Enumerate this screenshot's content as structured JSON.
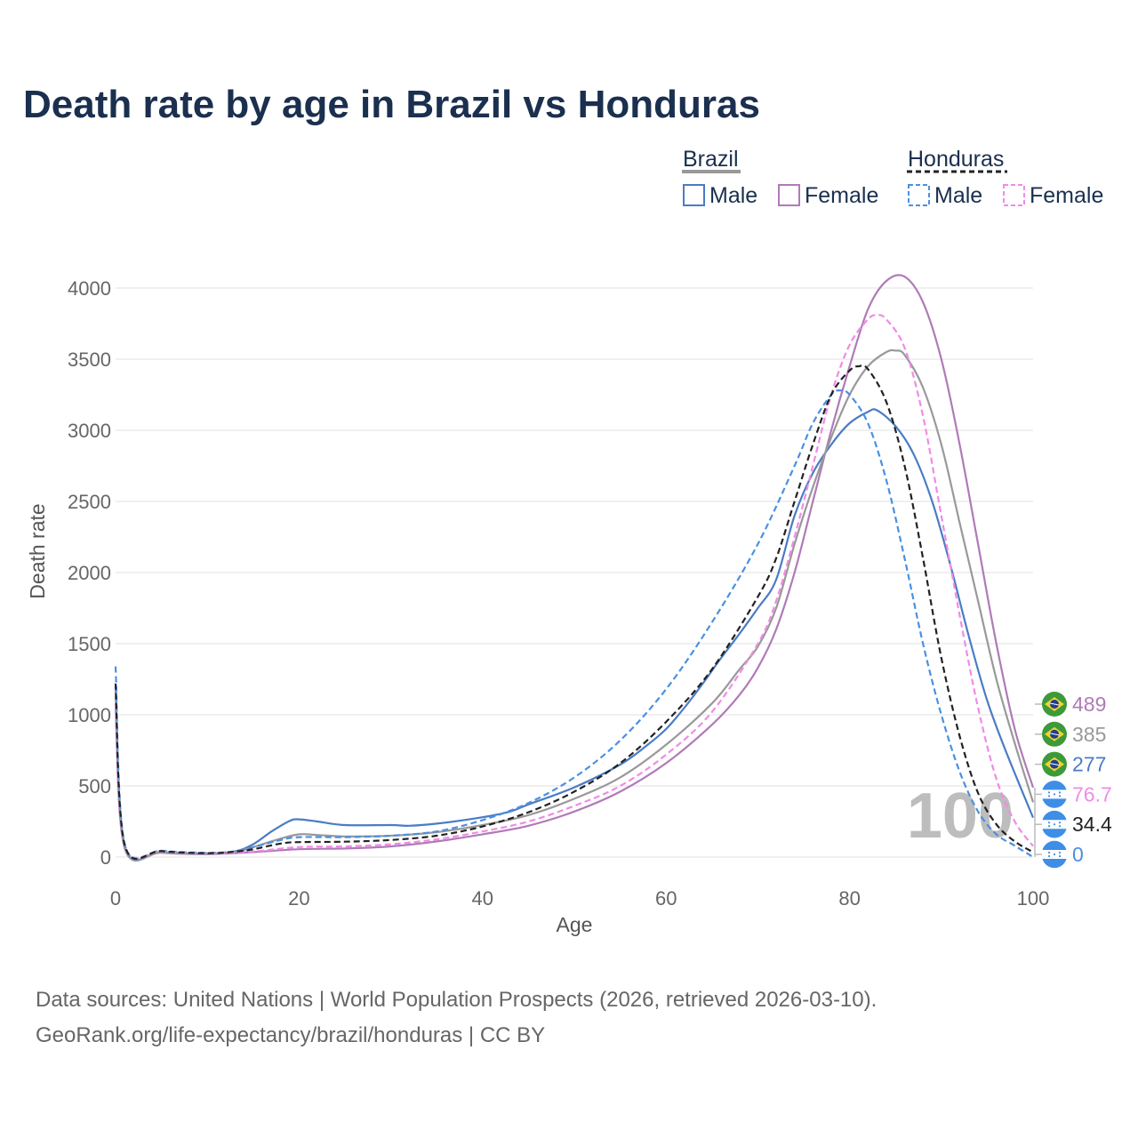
{
  "title": "Death rate by age in Brazil vs Honduras",
  "legend": {
    "groups": [
      {
        "name": "Brazil",
        "swatch_color": "#999999",
        "swatch_style": "solid"
      },
      {
        "name": "Honduras",
        "swatch_color": "#222222",
        "swatch_style": "dashed"
      }
    ],
    "items": [
      {
        "label": "Male",
        "color": "#4a7cc4",
        "style": "solid"
      },
      {
        "label": "Female",
        "color": "#b07ab8",
        "style": "solid"
      },
      {
        "label": "Male",
        "color": "#4a90e2",
        "style": "dashed"
      },
      {
        "label": "Female",
        "color": "#f08be6",
        "style": "dashed"
      }
    ]
  },
  "watermark": "100",
  "source_lines": [
    "Data sources: United Nations | World Population Prospects (2026, retrieved 2026-03-10).",
    "GeoRank.org/life-expectancy/brazil/honduras | CC BY"
  ],
  "chart_data": {
    "type": "line",
    "title": "Death rate by age in Brazil vs Honduras",
    "xlabel": "Age",
    "ylabel": "Death rate",
    "xlim": [
      0,
      100
    ],
    "ylim": [
      0,
      4000
    ],
    "xticks": [
      0,
      20,
      40,
      60,
      80,
      100
    ],
    "yticks": [
      0,
      500,
      1000,
      1500,
      2000,
      2500,
      3000,
      3500,
      4000
    ],
    "grid": true,
    "legend_position": "top-right",
    "series": [
      {
        "name": "Brazil Male",
        "country": "Brazil",
        "sex": "Male",
        "color": "#4a7cc4",
        "dash": "solid",
        "end_label": "277",
        "flag": "brazil",
        "points": [
          [
            0,
            1200
          ],
          [
            1,
            70
          ],
          [
            5,
            35
          ],
          [
            10,
            25
          ],
          [
            13,
            40
          ],
          [
            15,
            90
          ],
          [
            17,
            180
          ],
          [
            19,
            255
          ],
          [
            20,
            265
          ],
          [
            22,
            250
          ],
          [
            25,
            225
          ],
          [
            30,
            225
          ],
          [
            32,
            220
          ],
          [
            35,
            235
          ],
          [
            40,
            280
          ],
          [
            43,
            320
          ],
          [
            45,
            370
          ],
          [
            50,
            490
          ],
          [
            55,
            650
          ],
          [
            58,
            790
          ],
          [
            60,
            900
          ],
          [
            62,
            1050
          ],
          [
            64,
            1220
          ],
          [
            66,
            1400
          ],
          [
            68,
            1570
          ],
          [
            70,
            1750
          ],
          [
            72,
            1950
          ],
          [
            74,
            2400
          ],
          [
            76,
            2700
          ],
          [
            78,
            2900
          ],
          [
            80,
            3050
          ],
          [
            82,
            3130
          ],
          [
            83,
            3140
          ],
          [
            85,
            3030
          ],
          [
            87,
            2830
          ],
          [
            89,
            2500
          ],
          [
            91,
            2050
          ],
          [
            93,
            1550
          ],
          [
            95,
            1100
          ],
          [
            97,
            750
          ],
          [
            100,
            277
          ]
        ]
      },
      {
        "name": "Brazil Female",
        "country": "Brazil",
        "sex": "Female",
        "color": "#b07ab8",
        "dash": "solid",
        "end_label": "489",
        "flag": "brazil",
        "points": [
          [
            0,
            1050
          ],
          [
            1,
            60
          ],
          [
            5,
            30
          ],
          [
            10,
            20
          ],
          [
            15,
            35
          ],
          [
            20,
            55
          ],
          [
            25,
            60
          ],
          [
            30,
            75
          ],
          [
            35,
            110
          ],
          [
            40,
            160
          ],
          [
            45,
            220
          ],
          [
            50,
            320
          ],
          [
            55,
            460
          ],
          [
            60,
            660
          ],
          [
            65,
            930
          ],
          [
            68,
            1140
          ],
          [
            70,
            1330
          ],
          [
            72,
            1600
          ],
          [
            74,
            2000
          ],
          [
            76,
            2500
          ],
          [
            78,
            3000
          ],
          [
            80,
            3450
          ],
          [
            82,
            3850
          ],
          [
            84,
            4050
          ],
          [
            86,
            4080
          ],
          [
            88,
            3900
          ],
          [
            90,
            3500
          ],
          [
            92,
            2900
          ],
          [
            94,
            2200
          ],
          [
            96,
            1500
          ],
          [
            98,
            900
          ],
          [
            100,
            489
          ]
        ]
      },
      {
        "name": "Brazil Total",
        "country": "Brazil",
        "sex": "Total",
        "color": "#999999",
        "dash": "solid",
        "end_label": "385",
        "flag": "brazil",
        "points": [
          [
            0,
            1130
          ],
          [
            1,
            65
          ],
          [
            5,
            32
          ],
          [
            10,
            22
          ],
          [
            13,
            35
          ],
          [
            15,
            70
          ],
          [
            18,
            130
          ],
          [
            20,
            160
          ],
          [
            22,
            155
          ],
          [
            25,
            145
          ],
          [
            30,
            150
          ],
          [
            35,
            175
          ],
          [
            40,
            225
          ],
          [
            45,
            295
          ],
          [
            50,
            410
          ],
          [
            55,
            560
          ],
          [
            60,
            790
          ],
          [
            65,
            1080
          ],
          [
            68,
            1320
          ],
          [
            70,
            1480
          ],
          [
            72,
            1750
          ],
          [
            74,
            2200
          ],
          [
            76,
            2600
          ],
          [
            78,
            2950
          ],
          [
            80,
            3250
          ],
          [
            82,
            3450
          ],
          [
            84,
            3550
          ],
          [
            85,
            3560
          ],
          [
            86,
            3530
          ],
          [
            88,
            3300
          ],
          [
            90,
            2900
          ],
          [
            92,
            2350
          ],
          [
            94,
            1800
          ],
          [
            96,
            1250
          ],
          [
            98,
            800
          ],
          [
            100,
            385
          ]
        ]
      },
      {
        "name": "Honduras Male",
        "country": "Honduras",
        "sex": "Male",
        "color": "#4a90e2",
        "dash": "dashed",
        "end_label": "0",
        "flag": "honduras",
        "points": [
          [
            0,
            1340
          ],
          [
            1,
            90
          ],
          [
            5,
            45
          ],
          [
            10,
            30
          ],
          [
            13,
            40
          ],
          [
            15,
            70
          ],
          [
            18,
            120
          ],
          [
            20,
            140
          ],
          [
            25,
            140
          ],
          [
            30,
            150
          ],
          [
            35,
            180
          ],
          [
            40,
            260
          ],
          [
            45,
            380
          ],
          [
            50,
            560
          ],
          [
            55,
            820
          ],
          [
            60,
            1180
          ],
          [
            65,
            1650
          ],
          [
            70,
            2200
          ],
          [
            74,
            2750
          ],
          [
            76,
            3050
          ],
          [
            78,
            3250
          ],
          [
            79,
            3280
          ],
          [
            80,
            3250
          ],
          [
            82,
            3050
          ],
          [
            84,
            2650
          ],
          [
            86,
            2100
          ],
          [
            88,
            1500
          ],
          [
            90,
            1000
          ],
          [
            92,
            600
          ],
          [
            94,
            320
          ],
          [
            96,
            160
          ],
          [
            98,
            80
          ],
          [
            100,
            0
          ]
        ]
      },
      {
        "name": "Honduras Female",
        "country": "Honduras",
        "sex": "Female",
        "color": "#f08be6",
        "dash": "dashed",
        "end_label": "76.7",
        "flag": "honduras",
        "points": [
          [
            0,
            1080
          ],
          [
            1,
            80
          ],
          [
            5,
            40
          ],
          [
            10,
            25
          ],
          [
            15,
            40
          ],
          [
            20,
            70
          ],
          [
            25,
            75
          ],
          [
            30,
            90
          ],
          [
            35,
            125
          ],
          [
            40,
            180
          ],
          [
            45,
            250
          ],
          [
            50,
            360
          ],
          [
            55,
            500
          ],
          [
            60,
            720
          ],
          [
            65,
            1020
          ],
          [
            70,
            1500
          ],
          [
            72,
            1800
          ],
          [
            74,
            2250
          ],
          [
            76,
            2750
          ],
          [
            78,
            3250
          ],
          [
            80,
            3600
          ],
          [
            82,
            3780
          ],
          [
            83,
            3810
          ],
          [
            84,
            3780
          ],
          [
            86,
            3580
          ],
          [
            88,
            3100
          ],
          [
            90,
            2400
          ],
          [
            92,
            1700
          ],
          [
            94,
            1050
          ],
          [
            96,
            550
          ],
          [
            98,
            250
          ],
          [
            100,
            76.7
          ]
        ]
      },
      {
        "name": "Honduras Total",
        "country": "Honduras",
        "sex": "Total",
        "color": "#222222",
        "dash": "dashed",
        "end_label": "34.4",
        "flag": "honduras",
        "points": [
          [
            0,
            1220
          ],
          [
            1,
            85
          ],
          [
            5,
            42
          ],
          [
            10,
            27
          ],
          [
            13,
            38
          ],
          [
            15,
            55
          ],
          [
            18,
            95
          ],
          [
            20,
            105
          ],
          [
            25,
            108
          ],
          [
            30,
            120
          ],
          [
            35,
            150
          ],
          [
            40,
            215
          ],
          [
            45,
            315
          ],
          [
            50,
            460
          ],
          [
            55,
            660
          ],
          [
            60,
            950
          ],
          [
            65,
            1320
          ],
          [
            70,
            1830
          ],
          [
            72,
            2100
          ],
          [
            74,
            2500
          ],
          [
            76,
            2900
          ],
          [
            78,
            3250
          ],
          [
            80,
            3420
          ],
          [
            81,
            3450
          ],
          [
            82,
            3430
          ],
          [
            84,
            3200
          ],
          [
            86,
            2750
          ],
          [
            88,
            2100
          ],
          [
            90,
            1400
          ],
          [
            92,
            850
          ],
          [
            94,
            450
          ],
          [
            96,
            230
          ],
          [
            98,
            110
          ],
          [
            100,
            34.4
          ]
        ]
      }
    ]
  }
}
